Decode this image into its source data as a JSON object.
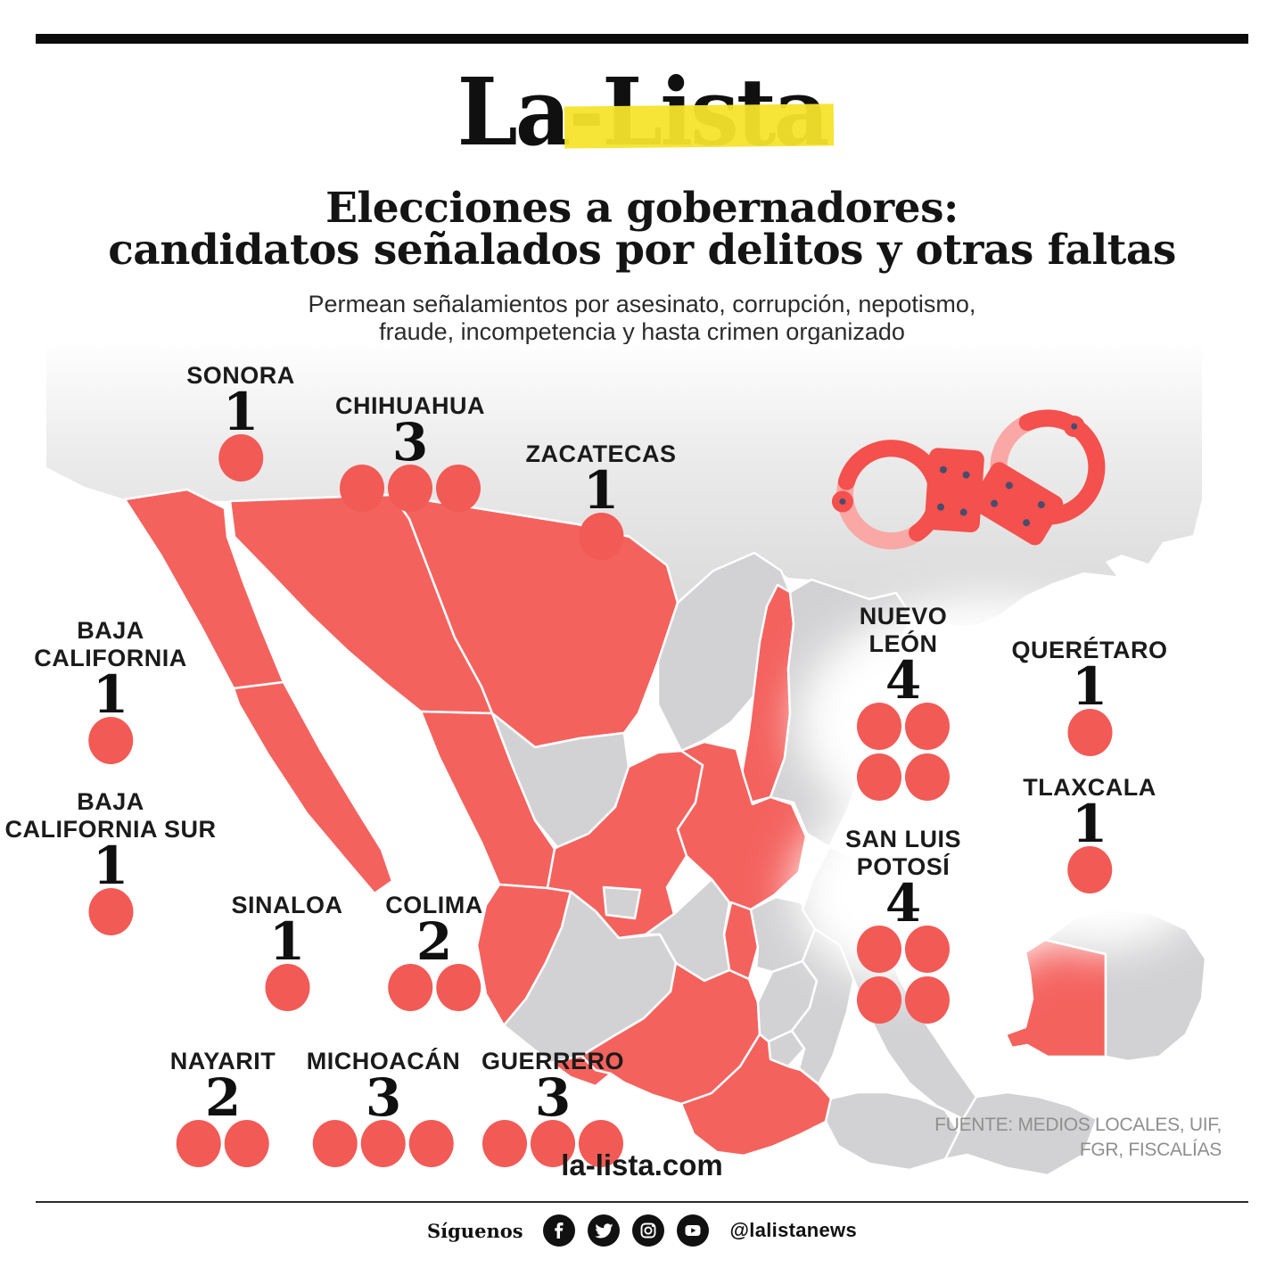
{
  "header": {
    "logo_text": "La-Lista",
    "logo_highlight_color": "#f6e32b",
    "top_bar_color": "#0b0b0b"
  },
  "title": {
    "line1": "Elecciones a gobernadores:",
    "line2": "candidatos señalados por delitos y otras faltas"
  },
  "subtitle": {
    "line1": "Permean señalamientos por asesinato, corrupción, nepotismo,",
    "line2": "fraude, incompetencia y hasta crimen organizado"
  },
  "colors": {
    "accent_red": "#f4625e",
    "dot_red": "#f25a55",
    "state_gray": "#d2d2d4",
    "usa_gray": "#dcdcdc",
    "highlight_yellow": "#f6e32b",
    "handcuff_red": "#f4504d",
    "handcuff_pink": "#f9a8a6",
    "rivet_navy": "#474d6e"
  },
  "states": {
    "sonora": {
      "line1": "SONORA",
      "line2": "",
      "count": 1,
      "per_row": 3
    },
    "chihuahua": {
      "line1": "CHIHUAHUA",
      "line2": "",
      "count": 3,
      "per_row": 3
    },
    "zacatecas": {
      "line1": "ZACATECAS",
      "line2": "",
      "count": 1,
      "per_row": 3
    },
    "baja_california": {
      "line1": "BAJA",
      "line2": "CALIFORNIA",
      "count": 1,
      "per_row": 3
    },
    "baja_california_sur": {
      "line1": "BAJA",
      "line2": "CALIFORNIA SUR",
      "count": 1,
      "per_row": 3
    },
    "sinaloa": {
      "line1": "SINALOA",
      "line2": "",
      "count": 1,
      "per_row": 3
    },
    "colima": {
      "line1": "COLIMA",
      "line2": "",
      "count": 2,
      "per_row": 3
    },
    "nayarit": {
      "line1": "NAYARIT",
      "line2": "",
      "count": 2,
      "per_row": 3
    },
    "michoacan": {
      "line1": "MICHOACÁN",
      "line2": "",
      "count": 3,
      "per_row": 3
    },
    "guerrero": {
      "line1": "GUERRERO",
      "line2": "",
      "count": 3,
      "per_row": 3
    },
    "nuevo_leon": {
      "line1": "NUEVO",
      "line2": "LEÓN",
      "count": 4,
      "per_row": 2
    },
    "queretaro": {
      "line1": "QUERÉTARO",
      "line2": "",
      "count": 1,
      "per_row": 3
    },
    "tlaxcala": {
      "line1": "TLAXCALA",
      "line2": "",
      "count": 1,
      "per_row": 3
    },
    "san_luis_potosi": {
      "line1": "SAN LUIS",
      "line2": "POTOSÍ",
      "count": 4,
      "per_row": 2
    }
  },
  "source": {
    "line1": "FUENTE: MEDIOS LOCALES, UIF,",
    "line2": "FGR, FISCALÍAS"
  },
  "website": "la-lista.com",
  "footer": {
    "follow_label": "Síguenos",
    "handle": "@lalistanews",
    "icons": [
      "facebook-icon",
      "twitter-icon",
      "instagram-icon",
      "youtube-icon"
    ]
  },
  "chart_data": {
    "type": "table",
    "map_subtype": "choropleth-mexico-states",
    "title": "Elecciones a gobernadores: candidatos señalados por delitos y otras faltas",
    "subtitle": "Permean señalamientos por asesinato, corrupción, nepotismo, fraude, incompetencia y hasta crimen organizado",
    "categories": [
      "Sonora",
      "Chihuahua",
      "Zacatecas",
      "Baja California",
      "Baja California Sur",
      "Sinaloa",
      "Colima",
      "Nayarit",
      "Michoacán",
      "Guerrero",
      "Nuevo León",
      "Querétaro",
      "Tlaxcala",
      "San Luis Potosí"
    ],
    "values": [
      1,
      3,
      1,
      1,
      1,
      1,
      2,
      2,
      3,
      3,
      4,
      1,
      1,
      4
    ],
    "highlighted_map_states": [
      "Baja California",
      "Baja California Sur",
      "Sonora",
      "Chihuahua",
      "Sinaloa",
      "Nayarit",
      "Zacatecas",
      "Nuevo León",
      "San Luis Potosí",
      "Querétaro",
      "Colima",
      "Michoacán",
      "Guerrero",
      "Tlaxcala",
      "Campeche"
    ],
    "legend_position": "none",
    "source": "FUENTE: MEDIOS LOCALES, UIF, FGR, FISCALÍAS"
  }
}
